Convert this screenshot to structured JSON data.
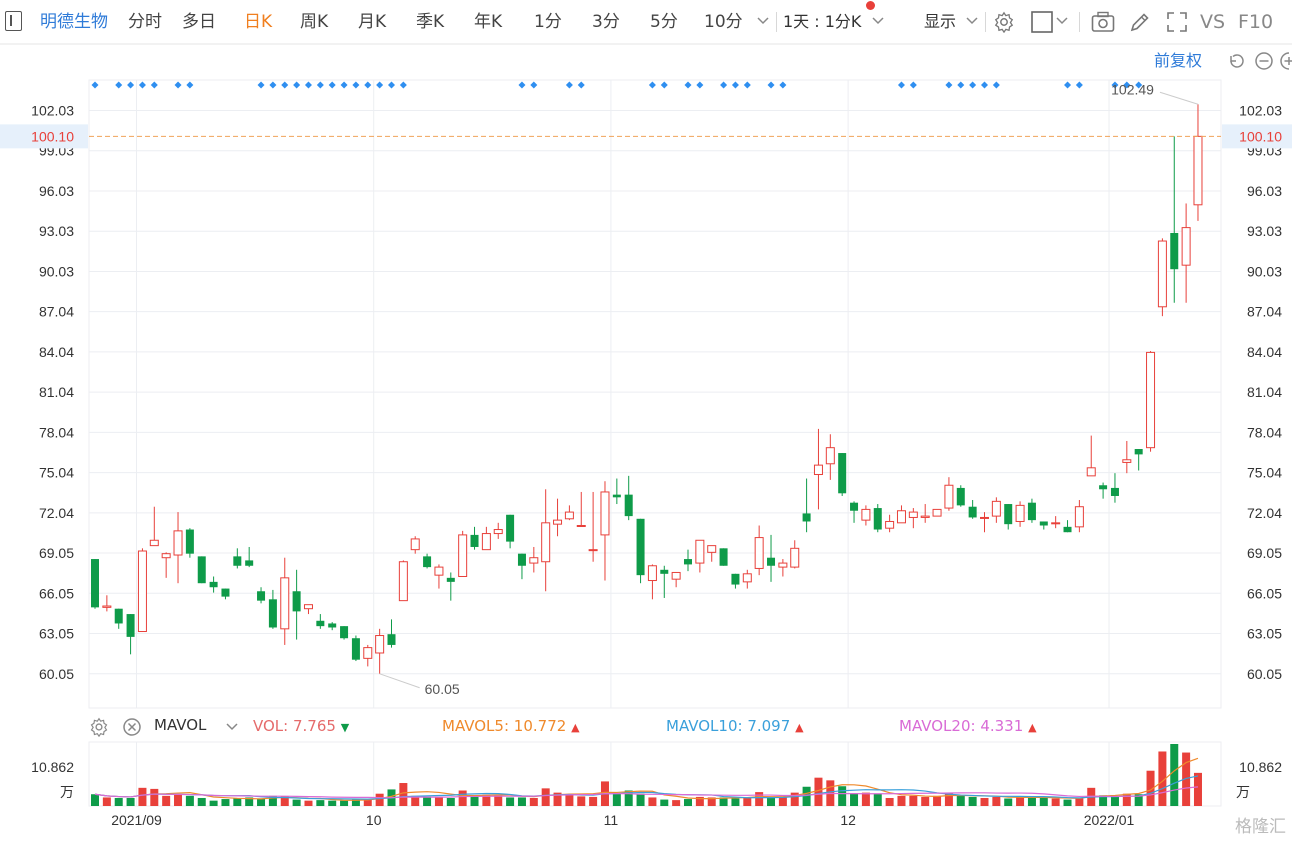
{
  "toolbar": {
    "stock_name": "明德生物",
    "periods": [
      "分时",
      "多日",
      "日K",
      "周K",
      "月K",
      "季K",
      "年K",
      "1分",
      "3分",
      "5分",
      "10分"
    ],
    "active_period": "日K",
    "interval_select": "1天 : 1分K",
    "display": "显示",
    "vs_label": "VS",
    "f10_label": "F10"
  },
  "subbar": {
    "adjust": "前复权"
  },
  "chart_data": {
    "type": "candlestick",
    "price_axis": {
      "ticks": [
        "102.03",
        "99.03",
        "96.03",
        "93.03",
        "90.03",
        "87.04",
        "84.04",
        "81.04",
        "78.04",
        "75.04",
        "72.04",
        "69.05",
        "66.05",
        "63.05",
        "60.05"
      ],
      "ylim": [
        57.5,
        104.3
      ],
      "current_price": "100.10",
      "max_label": "102.49",
      "min_label": "60.05"
    },
    "x_axis": {
      "labels": [
        "2021/09",
        "10",
        "11",
        "12",
        "2022/01"
      ]
    },
    "candles": [
      [
        68.6,
        68.6,
        64.9,
        65.0
      ],
      [
        65.0,
        65.9,
        64.7,
        65.1
      ],
      [
        64.9,
        64.9,
        63.4,
        63.8
      ],
      [
        64.5,
        64.5,
        61.5,
        62.8
      ],
      [
        63.2,
        69.4,
        63.2,
        69.2
      ],
      [
        69.6,
        72.5,
        69.6,
        70.0
      ],
      [
        68.7,
        69.1,
        67.2,
        69.0
      ],
      [
        68.9,
        72.1,
        66.8,
        70.7
      ],
      [
        70.8,
        70.9,
        68.7,
        69.0
      ],
      [
        68.8,
        68.8,
        66.8,
        66.8
      ],
      [
        66.9,
        67.3,
        66.1,
        66.5
      ],
      [
        66.4,
        66.4,
        65.6,
        65.8
      ],
      [
        68.8,
        69.4,
        67.9,
        68.1
      ],
      [
        68.5,
        69.5,
        68.0,
        68.1
      ],
      [
        66.2,
        66.5,
        65.3,
        65.5
      ],
      [
        65.6,
        66.3,
        63.4,
        63.5
      ],
      [
        63.4,
        68.7,
        62.2,
        67.2
      ],
      [
        66.2,
        67.8,
        62.6,
        64.7
      ],
      [
        64.9,
        65.2,
        64.5,
        65.2
      ],
      [
        64.0,
        64.5,
        63.4,
        63.6
      ],
      [
        63.8,
        63.9,
        63.3,
        63.5
      ],
      [
        63.6,
        63.6,
        62.6,
        62.7
      ],
      [
        62.7,
        62.9,
        61.0,
        61.1
      ],
      [
        61.2,
        62.2,
        60.6,
        62.0
      ],
      [
        61.6,
        63.4,
        60.05,
        62.9
      ],
      [
        63.0,
        64.1,
        62.0,
        62.2
      ],
      [
        65.5,
        68.5,
        65.5,
        68.4
      ],
      [
        69.3,
        70.3,
        69.0,
        70.1
      ],
      [
        68.8,
        69.0,
        67.9,
        68.0
      ],
      [
        67.4,
        68.2,
        66.4,
        68.0
      ],
      [
        67.2,
        67.6,
        65.5,
        66.9
      ],
      [
        67.3,
        70.7,
        67.3,
        70.4
      ],
      [
        70.4,
        71.0,
        69.3,
        69.5
      ],
      [
        69.3,
        71.0,
        69.3,
        70.5
      ],
      [
        70.5,
        71.3,
        70.1,
        70.8
      ],
      [
        71.9,
        71.9,
        69.4,
        69.9
      ],
      [
        69.0,
        69.0,
        67.1,
        68.1
      ],
      [
        68.3,
        69.5,
        67.6,
        68.7
      ],
      [
        68.4,
        73.8,
        66.2,
        71.3
      ],
      [
        71.2,
        73.1,
        70.3,
        71.5
      ],
      [
        71.6,
        72.6,
        71.5,
        72.1
      ],
      [
        71.1,
        73.6,
        71.1,
        71.1
      ],
      [
        69.3,
        73.6,
        68.4,
        69.3
      ],
      [
        70.4,
        74.4,
        67.0,
        73.6
      ],
      [
        73.4,
        74.6,
        72.7,
        73.2
      ],
      [
        73.4,
        74.8,
        71.5,
        71.8
      ],
      [
        71.6,
        71.6,
        66.8,
        67.4
      ],
      [
        67.0,
        68.2,
        65.6,
        68.1
      ],
      [
        67.8,
        68.1,
        65.7,
        67.5
      ],
      [
        67.1,
        67.6,
        66.5,
        67.6
      ],
      [
        68.6,
        69.3,
        67.7,
        68.2
      ],
      [
        68.3,
        70.0,
        67.6,
        70.0
      ],
      [
        69.1,
        69.5,
        68.4,
        69.6
      ],
      [
        69.4,
        69.4,
        68.1,
        68.1
      ],
      [
        67.5,
        67.5,
        66.4,
        66.7
      ],
      [
        66.9,
        67.8,
        66.4,
        67.5
      ],
      [
        67.9,
        71.1,
        67.4,
        70.2
      ],
      [
        68.7,
        70.4,
        66.9,
        68.1
      ],
      [
        68.0,
        68.6,
        67.3,
        68.3
      ],
      [
        68.0,
        70.0,
        67.9,
        69.4
      ],
      [
        72.0,
        74.6,
        70.6,
        71.4
      ],
      [
        74.9,
        78.3,
        72.3,
        75.6
      ],
      [
        75.7,
        77.9,
        74.5,
        76.9
      ],
      [
        76.5,
        76.5,
        73.3,
        73.5
      ],
      [
        72.8,
        72.9,
        71.3,
        72.2
      ],
      [
        71.5,
        72.6,
        71.1,
        72.3
      ],
      [
        72.4,
        72.7,
        70.6,
        70.8
      ],
      [
        70.9,
        71.9,
        70.6,
        71.4
      ],
      [
        71.3,
        72.6,
        71.3,
        72.2
      ],
      [
        71.7,
        72.4,
        70.9,
        72.1
      ],
      [
        71.7,
        72.7,
        71.3,
        71.8
      ],
      [
        71.8,
        72.3,
        71.8,
        72.3
      ],
      [
        72.4,
        74.7,
        72.2,
        74.1
      ],
      [
        73.9,
        74.1,
        72.5,
        72.6
      ],
      [
        72.5,
        73.0,
        71.6,
        71.7
      ],
      [
        71.7,
        72.1,
        70.6,
        71.7
      ],
      [
        71.8,
        73.2,
        71.3,
        72.9
      ],
      [
        72.7,
        72.7,
        70.8,
        71.2
      ],
      [
        71.4,
        72.9,
        71.0,
        72.6
      ],
      [
        72.8,
        73.1,
        71.3,
        71.5
      ],
      [
        71.4,
        71.4,
        70.8,
        71.1
      ],
      [
        71.3,
        71.8,
        70.9,
        71.3
      ],
      [
        71.0,
        71.5,
        70.6,
        70.6
      ],
      [
        71.0,
        73.0,
        70.6,
        72.5
      ],
      [
        74.8,
        77.8,
        74.8,
        75.4
      ],
      [
        74.1,
        74.3,
        73.1,
        73.8
      ],
      [
        73.9,
        75.0,
        72.8,
        73.3
      ],
      [
        75.8,
        77.4,
        75.0,
        76.0
      ],
      [
        76.8,
        76.8,
        75.2,
        76.4
      ],
      [
        76.9,
        84.1,
        76.6,
        84.0
      ],
      [
        87.4,
        92.5,
        86.7,
        92.3
      ],
      [
        92.9,
        100.1,
        87.7,
        90.2
      ],
      [
        90.5,
        95.1,
        87.7,
        93.3
      ],
      [
        95.0,
        102.49,
        93.8,
        100.1
      ]
    ],
    "ma_indicator": "MAVOL",
    "vol_values": {
      "vol": {
        "label": "VOL:",
        "value": "7.765",
        "color": "#e56b6b",
        "arrow": "down"
      },
      "mavol5": {
        "label": "MAVOL5:",
        "value": "10.772",
        "color": "#ef8a2c",
        "arrow": "up"
      },
      "mavol10": {
        "label": "MAVOL10:",
        "value": "7.097",
        "color": "#3aa0db",
        "arrow": "up"
      },
      "mavol20": {
        "label": "MAVOL20:",
        "value": "4.331",
        "color": "#d96bd6",
        "arrow": "up"
      }
    },
    "volume_axis": {
      "ticks": [
        "10.862",
        "万"
      ],
      "ymax": 11.6
    },
    "volumes": [
      2.2,
      1.6,
      1.5,
      1.5,
      3.4,
      3.2,
      1.9,
      2.1,
      1.9,
      1.5,
      1.0,
      1.3,
      1.5,
      1.6,
      1.3,
      1.9,
      1.8,
      1.2,
      1.0,
      1.1,
      1.0,
      1.0,
      1.2,
      1.4,
      2.3,
      3.1,
      4.3,
      1.9,
      1.8,
      1.6,
      1.5,
      2.9,
      1.9,
      2.1,
      2.0,
      1.6,
      1.6,
      1.5,
      3.3,
      2.5,
      2.2,
      1.8,
      1.7,
      4.6,
      2.4,
      2.9,
      2.3,
      1.6,
      1.2,
      1.1,
      1.3,
      1.7,
      1.6,
      1.6,
      1.4,
      1.6,
      2.6,
      1.5,
      1.6,
      2.5,
      3.6,
      5.3,
      4.8,
      3.7,
      2.4,
      2.5,
      2.3,
      1.5,
      1.9,
      1.9,
      1.7,
      1.9,
      2.4,
      2.0,
      1.7,
      1.5,
      1.7,
      1.4,
      1.8,
      1.6,
      1.5,
      1.4,
      1.2,
      1.4,
      3.4,
      2.0,
      1.8,
      2.3,
      2.2,
      6.6,
      10.2,
      11.6,
      10.0,
      6.2
    ],
    "ma_dots": [
      0,
      2,
      3,
      4,
      5,
      7,
      8,
      14,
      15,
      16,
      17,
      18,
      19,
      20,
      21,
      22,
      23,
      24,
      25,
      26,
      36,
      37,
      40,
      41,
      47,
      48,
      50,
      51,
      53,
      54,
      55,
      57,
      58,
      68,
      69,
      72,
      73,
      74,
      75,
      76,
      82,
      83,
      86,
      87,
      88
    ]
  },
  "colors": {
    "up": "#e8403a",
    "down": "#0e9b49",
    "grid": "#eceef2",
    "axis_text": "#333333",
    "dot": "#2f8ff0",
    "price_line": "#f0a25a"
  },
  "watermark": "格隆汇"
}
